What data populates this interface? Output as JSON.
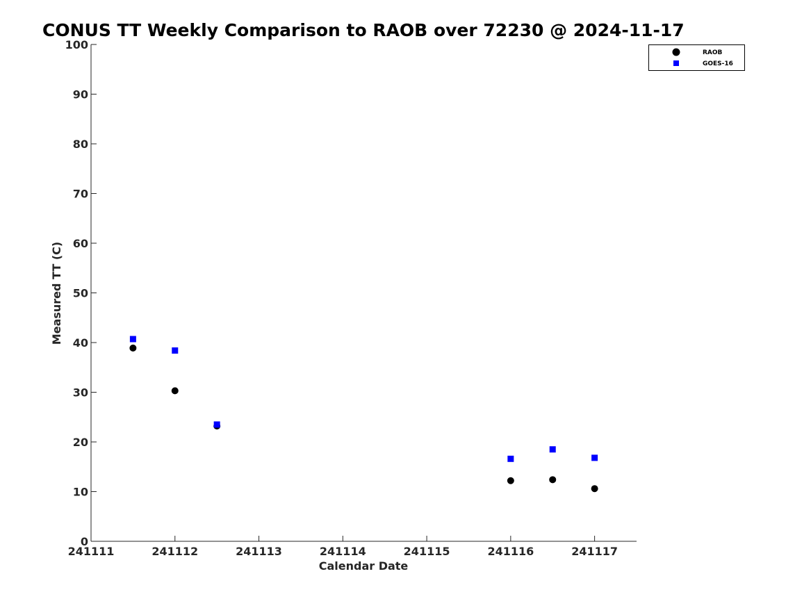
{
  "chart_data": {
    "type": "scatter",
    "title": "CONUS TT Weekly Comparison to RAOB over 72230 @ 2024-11-17",
    "xlabel": "Calendar Date",
    "ylabel": "Measured TT (C)",
    "xlim": [
      0,
      6.5
    ],
    "ylim": [
      0,
      100
    ],
    "x_ticks": [
      0,
      1,
      2,
      3,
      4,
      5,
      6
    ],
    "x_tick_labels": [
      "241111",
      "241112",
      "241113",
      "241114",
      "241115",
      "241116",
      "241117"
    ],
    "y_ticks": [
      0,
      10,
      20,
      30,
      40,
      50,
      60,
      70,
      80,
      90,
      100
    ],
    "y_tick_labels": [
      "0",
      "10",
      "20",
      "30",
      "40",
      "50",
      "60",
      "70",
      "80",
      "90",
      "100"
    ],
    "grid": false,
    "legend_position": "top-right",
    "series": [
      {
        "name": "RAOB",
        "marker": "circle",
        "color": "#000000",
        "x": [
          0.5,
          1.0,
          1.5,
          5.0,
          5.5,
          6.0
        ],
        "y": [
          38.9,
          30.3,
          23.2,
          12.2,
          12.4,
          10.6
        ]
      },
      {
        "name": "GOES-16",
        "marker": "square",
        "color": "#0000ff",
        "x": [
          0.5,
          1.0,
          1.5,
          5.0,
          5.5,
          6.0
        ],
        "y": [
          40.7,
          38.4,
          23.5,
          16.6,
          18.5,
          16.8
        ]
      }
    ]
  }
}
